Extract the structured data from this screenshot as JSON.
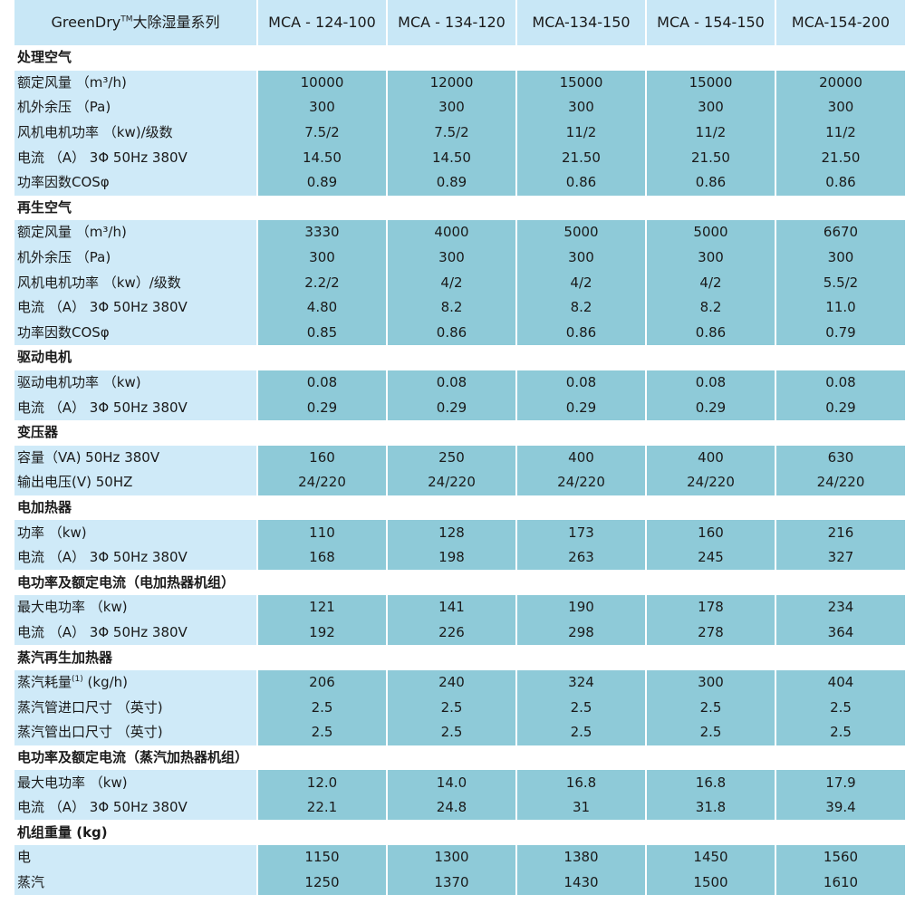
{
  "header": {
    "series_name": "GreenDry",
    "tm": "TM",
    "series_suffix": "大除湿量系列",
    "models": [
      "MCA - 124-100",
      "MCA - 134-120",
      "MCA-134-150",
      "MCA - 154-150",
      "MCA-154-200"
    ]
  },
  "rows": [
    {
      "type": "section",
      "label": "处理空气"
    },
    {
      "type": "data",
      "label": "额定风量 （m³/h)",
      "values": [
        "10000",
        "12000",
        "15000",
        "15000",
        "20000"
      ]
    },
    {
      "type": "data",
      "label": "机外余压 （Pa)",
      "values": [
        "300",
        "300",
        "300",
        "300",
        "300"
      ]
    },
    {
      "type": "data",
      "label": "风机电机功率 （kw)/级数",
      "values": [
        "7.5/2",
        "7.5/2",
        "11/2",
        "11/2",
        "11/2"
      ]
    },
    {
      "type": "data",
      "label": "电流 （A） 3Φ 50Hz 380V",
      "values": [
        "14.50",
        "14.50",
        "21.50",
        "21.50",
        "21.50"
      ]
    },
    {
      "type": "data",
      "label": "功率因数COSφ",
      "values": [
        "0.89",
        "0.89",
        "0.86",
        "0.86",
        "0.86"
      ]
    },
    {
      "type": "section",
      "label": "再生空气"
    },
    {
      "type": "data",
      "label": "额定风量 （m³/h)",
      "values": [
        "3330",
        "4000",
        "5000",
        "5000",
        "6670"
      ]
    },
    {
      "type": "data",
      "label": "机外余压 （Pa)",
      "values": [
        "300",
        "300",
        "300",
        "300",
        "300"
      ]
    },
    {
      "type": "data",
      "label": "风机电机功率 （kw）/级数",
      "values": [
        "2.2/2",
        "4/2",
        "4/2",
        "4/2",
        "5.5/2"
      ]
    },
    {
      "type": "data",
      "label": "电流 （A） 3Φ 50Hz 380V",
      "values": [
        "4.80",
        "8.2",
        "8.2",
        "8.2",
        "11.0"
      ]
    },
    {
      "type": "data",
      "label": "功率因数COSφ",
      "values": [
        "0.85",
        "0.86",
        "0.86",
        "0.86",
        "0.79"
      ]
    },
    {
      "type": "section",
      "label": "驱动电机"
    },
    {
      "type": "data",
      "label": "驱动电机功率 （kw)",
      "values": [
        "0.08",
        "0.08",
        "0.08",
        "0.08",
        "0.08"
      ]
    },
    {
      "type": "data",
      "label": "电流 （A） 3Φ 50Hz 380V",
      "values": [
        "0.29",
        "0.29",
        "0.29",
        "0.29",
        "0.29"
      ]
    },
    {
      "type": "section",
      "label": "变压器"
    },
    {
      "type": "data",
      "label": "容量（VA) 50Hz 380V",
      "values": [
        "160",
        "250",
        "400",
        "400",
        "630"
      ]
    },
    {
      "type": "data",
      "label": "输出电压(V) 50HZ",
      "values": [
        "24/220",
        "24/220",
        "24/220",
        "24/220",
        "24/220"
      ]
    },
    {
      "type": "section",
      "label": "电加热器"
    },
    {
      "type": "data",
      "label": "功率 （kw)",
      "values": [
        "110",
        "128",
        "173",
        "160",
        "216"
      ]
    },
    {
      "type": "data",
      "label": "电流 （A） 3Φ 50Hz 380V",
      "values": [
        "168",
        "198",
        "263",
        "245",
        "327"
      ]
    },
    {
      "type": "section",
      "label": "电功率及额定电流（电加热器机组）"
    },
    {
      "type": "data",
      "label": "最大电功率 （kw)",
      "values": [
        "121",
        "141",
        "190",
        "178",
        "234"
      ]
    },
    {
      "type": "data",
      "label": "电流 （A） 3Φ 50Hz 380V",
      "values": [
        "192",
        "226",
        "298",
        "278",
        "364"
      ]
    },
    {
      "type": "section",
      "label": "蒸汽再生加热器"
    },
    {
      "type": "data",
      "label": "蒸汽耗量",
      "sup": "(1)",
      "label_tail": " (kg/h)",
      "values": [
        "206",
        "240",
        "324",
        "300",
        "404"
      ]
    },
    {
      "type": "data",
      "label": "蒸汽管进口尺寸 （英寸)",
      "values": [
        "2.5",
        "2.5",
        "2.5",
        "2.5",
        "2.5"
      ]
    },
    {
      "type": "data",
      "label": "蒸汽管出口尺寸 （英寸)",
      "values": [
        "2.5",
        "2.5",
        "2.5",
        "2.5",
        "2.5"
      ]
    },
    {
      "type": "section",
      "label": "电功率及额定电流（蒸汽加热器机组）"
    },
    {
      "type": "data",
      "label": "最大电功率 （kw)",
      "values": [
        "12.0",
        "14.0",
        "16.8",
        "16.8",
        "17.9"
      ]
    },
    {
      "type": "data",
      "label": "电流 （A） 3Φ 50Hz 380V",
      "values": [
        "22.1",
        "24.8",
        "31",
        "31.8",
        "39.4"
      ]
    },
    {
      "type": "section",
      "label": "机组重量 (kg)"
    },
    {
      "type": "data",
      "label": "电",
      "values": [
        "1150",
        "1300",
        "1380",
        "1450",
        "1560"
      ]
    },
    {
      "type": "data",
      "label": "蒸汽",
      "values": [
        "1250",
        "1370",
        "1430",
        "1500",
        "1610"
      ]
    }
  ]
}
